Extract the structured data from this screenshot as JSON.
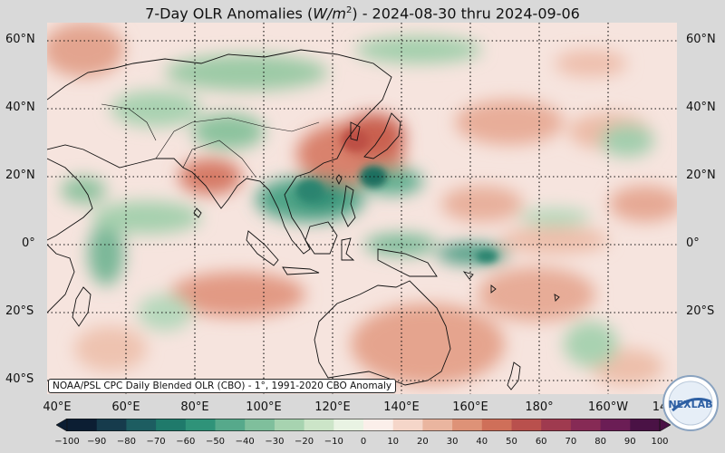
{
  "title": {
    "prefix": "7-Day OLR Anomalies (",
    "unit": "W/m",
    "unit_exp": "2",
    "suffix": ") - 2024-08-30 thru 2024-09-06"
  },
  "map": {
    "lat_labels_left": [
      "60°N",
      "40°N",
      "20°N",
      "0°",
      "20°S",
      "40°S"
    ],
    "lat_labels_right": [
      "60°N",
      "40°N",
      "20°N",
      "0°",
      "20°S"
    ],
    "lon_labels": [
      "40°E",
      "60°E",
      "80°E",
      "100°E",
      "120°E",
      "140°E",
      "160°E",
      "180°",
      "160°W",
      "14"
    ],
    "credit": "NOAA/PSL CPC Daily Blended OLR (CBO) - 1°, 1991-2020 CBO Anomaly"
  },
  "colorbar": {
    "ticks": [
      "−100",
      "−90",
      "−80",
      "−70",
      "−60",
      "−50",
      "−40",
      "−30",
      "−20",
      "−10",
      "0",
      "10",
      "20",
      "30",
      "40",
      "50",
      "60",
      "70",
      "80",
      "90",
      "100"
    ],
    "colors": [
      "#0c1e33",
      "#163b4c",
      "#1d5d61",
      "#1f7a6b",
      "#2f9379",
      "#56a98b",
      "#7fbf9c",
      "#a7d3b0",
      "#cce5c8",
      "#e9f3e3",
      "#fbefea",
      "#f5d6c9",
      "#eab59f",
      "#de9277",
      "#cf6f59",
      "#b9504d",
      "#9f3a4f",
      "#862a55",
      "#6b1d55",
      "#4a1245"
    ]
  },
  "logo": {
    "text": "NEXLAB",
    "ring": "ATMOSPHERIC SCIENCES"
  },
  "colors": {
    "background": "#d9d9d9",
    "neutral": "#f6e4de",
    "positive": "#d77a66",
    "negative": "#3f9a7c"
  }
}
